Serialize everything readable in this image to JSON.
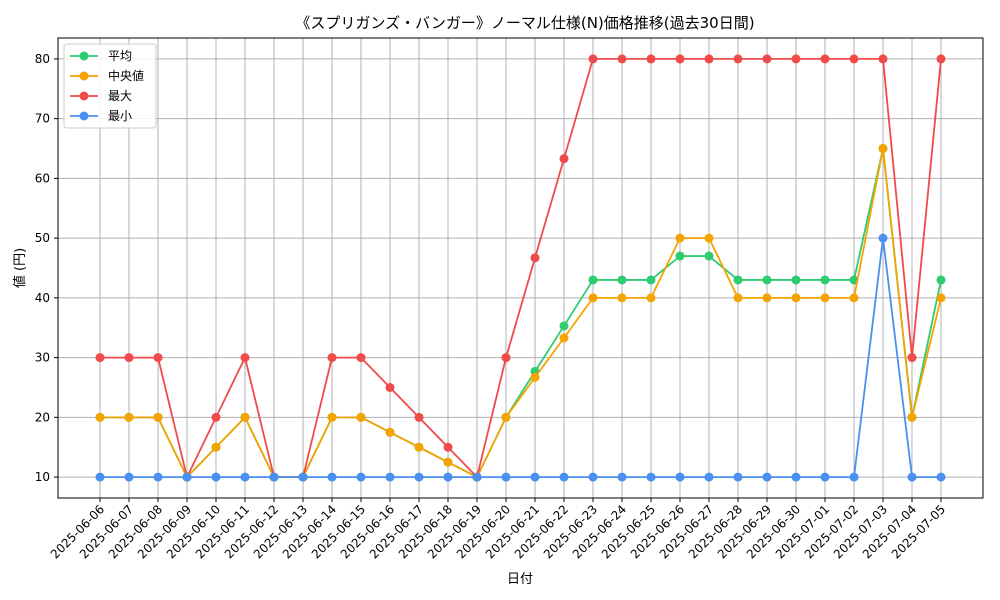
{
  "chart_data": {
    "type": "line",
    "title": "《スプリガンズ・バンガー》ノーマル仕様(N)価格推移(過去30日間)",
    "xlabel": "日付",
    "ylabel": "値 (円)",
    "ylim": [
      6.5,
      83.5
    ],
    "yticks": [
      10,
      20,
      30,
      40,
      50,
      60,
      70,
      80
    ],
    "grid": true,
    "legend_position": "top-left",
    "categories": [
      "2025-06-06",
      "2025-06-07",
      "2025-06-08",
      "2025-06-09",
      "2025-06-10",
      "2025-06-11",
      "2025-06-12",
      "2025-06-13",
      "2025-06-14",
      "2025-06-15",
      "2025-06-16",
      "2025-06-17",
      "2025-06-18",
      "2025-06-19",
      "2025-06-20",
      "2025-06-21",
      "2025-06-22",
      "2025-06-23",
      "2025-06-24",
      "2025-06-25",
      "2025-06-26",
      "2025-06-27",
      "2025-06-28",
      "2025-06-29",
      "2025-06-30",
      "2025-07-01",
      "2025-07-02",
      "2025-07-03",
      "2025-07-04",
      "2025-07-05"
    ],
    "series": [
      {
        "name": "平均",
        "color": "#2ecc71",
        "values": [
          20,
          20,
          20,
          10,
          15,
          20,
          10,
          10,
          20,
          20,
          17.5,
          15,
          12.5,
          10,
          20,
          27.7,
          35.3,
          43,
          43,
          43,
          47,
          47,
          43,
          43,
          43,
          43,
          43,
          65,
          20,
          43
        ]
      },
      {
        "name": "中央値",
        "color": "#f5a300",
        "values": [
          20,
          20,
          20,
          10,
          15,
          20,
          10,
          10,
          20,
          20,
          17.5,
          15,
          12.5,
          10,
          20,
          26.7,
          33.3,
          40,
          40,
          40,
          50,
          50,
          40,
          40,
          40,
          40,
          40,
          65,
          20,
          40
        ]
      },
      {
        "name": "最大",
        "color": "#f04a4a",
        "values": [
          30,
          30,
          30,
          10,
          20,
          30,
          10,
          10,
          30,
          30,
          25,
          20,
          15,
          10,
          30,
          46.7,
          63.3,
          80,
          80,
          80,
          80,
          80,
          80,
          80,
          80,
          80,
          80,
          80,
          30,
          80
        ]
      },
      {
        "name": "最小",
        "color": "#4a90f0",
        "values": [
          10,
          10,
          10,
          10,
          10,
          10,
          10,
          10,
          10,
          10,
          10,
          10,
          10,
          10,
          10,
          10,
          10,
          10,
          10,
          10,
          10,
          10,
          10,
          10,
          10,
          10,
          10,
          50,
          10,
          10
        ]
      }
    ]
  }
}
